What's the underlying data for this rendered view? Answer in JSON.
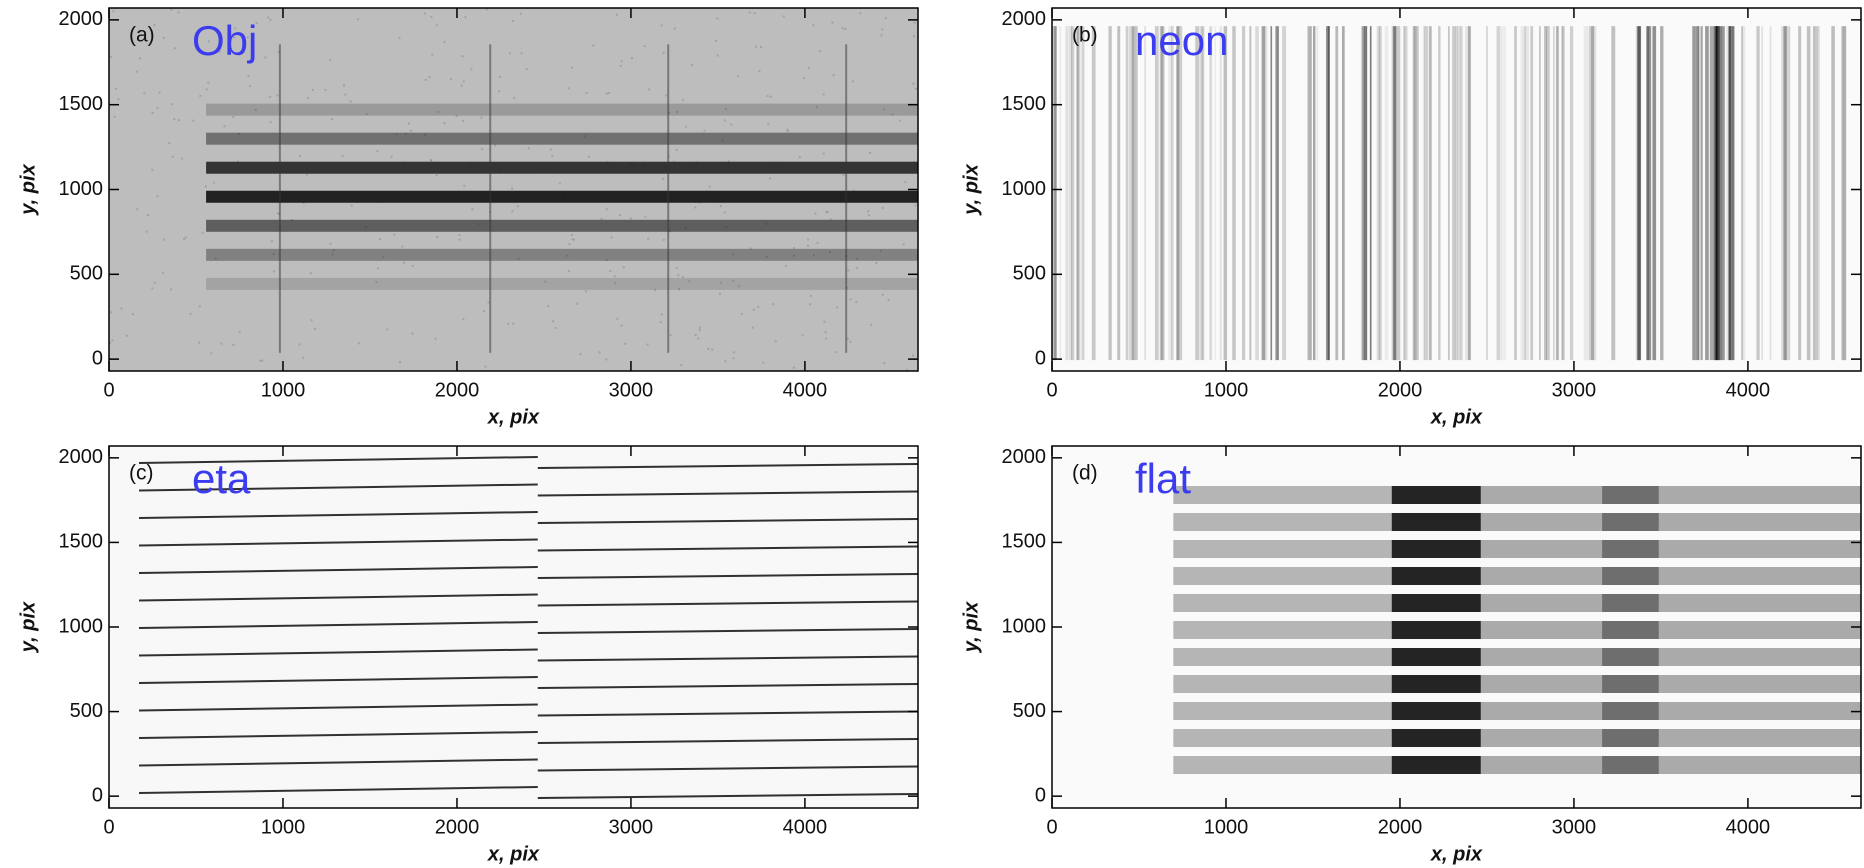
{
  "chart_data": [
    {
      "type": "image",
      "panel_label": "(a)",
      "annotation": "Obj",
      "x_label": "x, pix",
      "y_label": "y, pix",
      "xlim": [
        0,
        4650
      ],
      "ylim": [
        -70,
        2070
      ],
      "xticks": [
        0,
        1000,
        2000,
        3000,
        4000
      ],
      "yticks": [
        0,
        500,
        1000,
        1500,
        2000
      ]
    },
    {
      "type": "image",
      "panel_label": "(b)",
      "annotation": "neon",
      "x_label": "x, pix",
      "y_label": "y, pix",
      "xlim": [
        0,
        4650
      ],
      "ylim": [
        -70,
        2070
      ],
      "xticks": [
        0,
        1000,
        2000,
        3000,
        4000
      ],
      "yticks": [
        0,
        500,
        1000,
        1500,
        2000
      ]
    },
    {
      "type": "image",
      "panel_label": "(c)",
      "annotation": "eta",
      "x_label": "x, pix",
      "y_label": "y, pix",
      "xlim": [
        0,
        4650
      ],
      "ylim": [
        -70,
        2070
      ],
      "xticks": [
        0,
        1000,
        2000,
        3000,
        4000
      ],
      "yticks": [
        0,
        500,
        1000,
        1500,
        2000
      ]
    },
    {
      "type": "image",
      "panel_label": "(d)",
      "annotation": "flat",
      "x_label": "x, pix",
      "y_label": "y, pix",
      "xlim": [
        0,
        4650
      ],
      "ylim": [
        -70,
        2070
      ],
      "xticks": [
        0,
        1000,
        2000,
        3000,
        4000
      ],
      "yticks": [
        0,
        500,
        1000,
        1500,
        2000
      ]
    }
  ]
}
